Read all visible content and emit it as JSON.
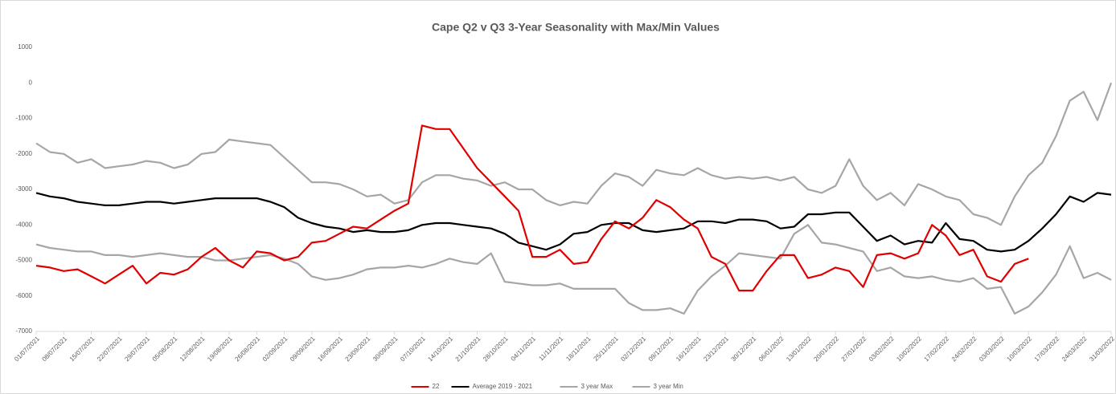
{
  "chart_data": {
    "type": "line",
    "title": "Cape Q2 v Q3 3-Year Seasonality with Max/Min Values",
    "categories": [
      "01/07/2021",
      null,
      "08/07/2021",
      null,
      "15/07/2021",
      null,
      "22/07/2021",
      null,
      "29/07/2021",
      null,
      "05/08/2021",
      null,
      "12/08/2021",
      null,
      "19/08/2021",
      null,
      "26/08/2021",
      null,
      "02/09/2021",
      null,
      "09/09/2021",
      null,
      "16/09/2021",
      null,
      "23/09/2021",
      null,
      "30/09/2021",
      null,
      "07/10/2021",
      null,
      "14/10/2021",
      null,
      "21/10/2021",
      null,
      "28/10/2021",
      null,
      "04/11/2021",
      null,
      "11/11/2021",
      null,
      "18/11/2021",
      null,
      "25/11/2021",
      null,
      "02/12/2021",
      null,
      "09/12/2021",
      null,
      "16/12/2021",
      null,
      "23/12/2021",
      null,
      "30/12/2021",
      null,
      "06/01/2022",
      null,
      "13/01/2022",
      null,
      "20/01/2022",
      null,
      "27/01/2022",
      null,
      "03/02/2022",
      null,
      "10/02/2022",
      null,
      "17/02/2022",
      null,
      "24/02/2022",
      null,
      "03/03/2022",
      null,
      "10/03/2022",
      null,
      "17/03/2022",
      null,
      "24/03/2022",
      null,
      "31/03/2022"
    ],
    "series": [
      {
        "name": "22",
        "color": "#e00000",
        "values": [
          -5150,
          -5200,
          -5300,
          -5250,
          -5450,
          -5650,
          -5400,
          -5150,
          -5650,
          -5350,
          -5400,
          -5250,
          -4900,
          -4650,
          -5000,
          -5200,
          -4750,
          -4800,
          -5000,
          -4900,
          -4500,
          -4450,
          -4250,
          -4050,
          -4100,
          -3850,
          -3600,
          -3400,
          -1200,
          -1300,
          -1300,
          -1850,
          -2400,
          -2800,
          -3200,
          -3600,
          -4900,
          -4900,
          -4700,
          -5100,
          -5050,
          -4400,
          -3900,
          -4100,
          -3800,
          -3300,
          -3500,
          -3850,
          -4100,
          -4900,
          -5100,
          -5850,
          -5850,
          -5300,
          -4850,
          -4850,
          -5500,
          -5400,
          -5200,
          -5300,
          -5750,
          -4850,
          -4800,
          -4950,
          -4800,
          -4000,
          -4300,
          -4850,
          -4700,
          -5450,
          -5600,
          -5100,
          -4950,
          null,
          null,
          null,
          null,
          null,
          null
        ]
      },
      {
        "name": "Average 2019 - 2021",
        "color": "#000000",
        "values": [
          -3100,
          -3200,
          -3250,
          -3350,
          -3400,
          -3450,
          -3450,
          -3400,
          -3350,
          -3350,
          -3400,
          -3350,
          -3300,
          -3250,
          -3250,
          -3250,
          -3250,
          -3350,
          -3500,
          -3800,
          -3950,
          -4050,
          -4100,
          -4200,
          -4150,
          -4200,
          -4200,
          -4150,
          -4000,
          -3950,
          -3950,
          -4000,
          -4050,
          -4100,
          -4250,
          -4500,
          -4600,
          -4700,
          -4550,
          -4250,
          -4200,
          -4000,
          -3950,
          -3950,
          -4150,
          -4200,
          -4150,
          -4100,
          -3900,
          -3900,
          -3950,
          -3850,
          -3850,
          -3900,
          -4100,
          -4050,
          -3700,
          -3700,
          -3650,
          -3650,
          -4050,
          -4450,
          -4300,
          -4550,
          -4450,
          -4500,
          -3950,
          -4400,
          -4450,
          -4700,
          -4750,
          -4700,
          -4450,
          -4100,
          -3700,
          -3200,
          -3350,
          -3100,
          -3150
        ]
      },
      {
        "name": "3 year Max",
        "color": "#a6a6a6",
        "values": [
          -1700,
          -1950,
          -2000,
          -2250,
          -2150,
          -2400,
          -2350,
          -2300,
          -2200,
          -2250,
          -2400,
          -2300,
          -2000,
          -1950,
          -1600,
          -1650,
          -1700,
          -1750,
          -2100,
          -2450,
          -2800,
          -2800,
          -2850,
          -3000,
          -3200,
          -3150,
          -3400,
          -3300,
          -2800,
          -2600,
          -2600,
          -2700,
          -2750,
          -2900,
          -2800,
          -3000,
          -3000,
          -3300,
          -3450,
          -3350,
          -3400,
          -2900,
          -2550,
          -2650,
          -2900,
          -2450,
          -2550,
          -2600,
          -2400,
          -2600,
          -2700,
          -2650,
          -2700,
          -2650,
          -2750,
          -2650,
          -3000,
          -3100,
          -2900,
          -2150,
          -2900,
          -3300,
          -3100,
          -3450,
          -2850,
          -3000,
          -3200,
          -3300,
          -3700,
          -3800,
          -4000,
          -3200,
          -2600,
          -2250,
          -1500,
          -500,
          -250,
          -1050,
          0
        ]
      },
      {
        "name": "3 year Min",
        "color": "#a6a6a6",
        "values": [
          -4550,
          -4650,
          -4700,
          -4750,
          -4750,
          -4850,
          -4850,
          -4900,
          -4850,
          -4800,
          -4850,
          -4900,
          -4900,
          -5000,
          -5000,
          -4950,
          -4900,
          -4850,
          -4950,
          -5100,
          -5450,
          -5550,
          -5500,
          -5400,
          -5250,
          -5200,
          -5200,
          -5150,
          -5200,
          -5100,
          -4950,
          -5050,
          -5100,
          -4800,
          -5600,
          -5650,
          -5700,
          -5700,
          -5650,
          -5800,
          -5800,
          -5800,
          -5800,
          -6200,
          -6400,
          -6400,
          -6350,
          -6500,
          -5850,
          -5450,
          -5150,
          -4800,
          -4850,
          -4900,
          -4950,
          -4250,
          -4000,
          -4500,
          -4550,
          -4650,
          -4750,
          -5300,
          -5200,
          -5450,
          -5500,
          -5450,
          -5550,
          -5600,
          -5500,
          -5800,
          -5750,
          -6500,
          -6300,
          -5900,
          -5400,
          -4600,
          -5500,
          -5350,
          -5550
        ]
      }
    ],
    "ylim": [
      -7000,
      1000
    ],
    "yticks": [
      -7000,
      -6000,
      -5000,
      -4000,
      -3000,
      -2000,
      -1000,
      0,
      1000
    ],
    "grid": false,
    "legend": "bottom"
  }
}
